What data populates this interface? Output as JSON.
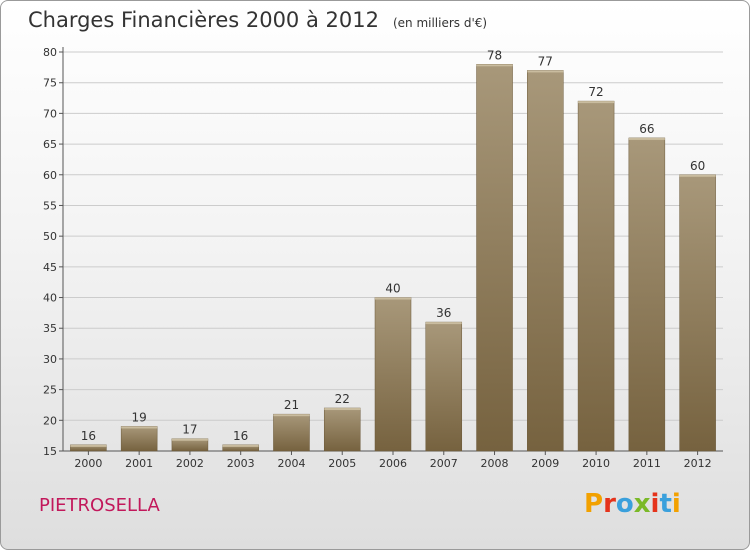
{
  "title": "Charges Financières 2000 à 2012",
  "unit_note": "(en milliers d'€)",
  "commune": "PIETROSELLA",
  "logo": {
    "text": "Proxiti",
    "colors": [
      "#f2a100",
      "#e5331b",
      "#3aa0dc",
      "#7bb928",
      "#e5331b",
      "#3aa0dc",
      "#f2a100"
    ]
  },
  "colors": {
    "bar_light": "#a8987a",
    "bar_dark": "#7a6646",
    "grid": "#cccccc",
    "commune": "#c2185b"
  },
  "chart_data": {
    "type": "bar",
    "title": "Charges Financières 2000 à 2012",
    "subtitle": "(en milliers d'€)",
    "xlabel": "",
    "ylabel": "",
    "categories": [
      "2000",
      "2001",
      "2002",
      "2003",
      "2004",
      "2005",
      "2006",
      "2007",
      "2008",
      "2009",
      "2010",
      "2011",
      "2012"
    ],
    "values": [
      16,
      19,
      17,
      16,
      21,
      22,
      40,
      36,
      78,
      77,
      72,
      66,
      60
    ],
    "ylim": [
      15,
      80
    ],
    "yticks": [
      15,
      20,
      25,
      30,
      35,
      40,
      45,
      50,
      55,
      60,
      65,
      70,
      75,
      80
    ],
    "grid": true,
    "legend": "none"
  }
}
